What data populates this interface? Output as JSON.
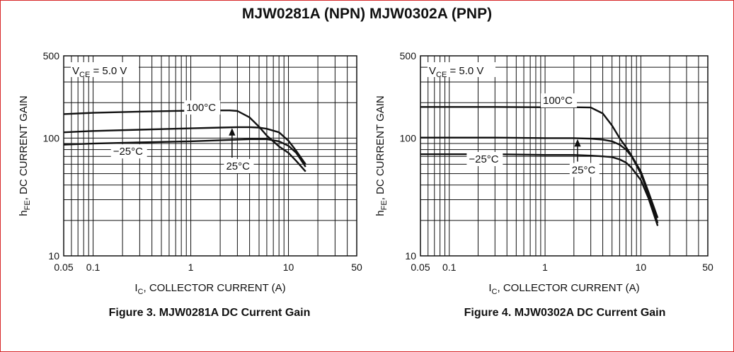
{
  "page": {
    "title": "MJW0281A (NPN) MJW0302A (PNP)",
    "frame_color": "#d8282a"
  },
  "chart_data": [
    {
      "type": "line",
      "title": "Figure 3. MJW0281A DC Current Gain",
      "xlabel": "IC, COLLECTOR CURRENT (A)",
      "ylabel": "hFE, DC CURRENT GAIN",
      "xlabel_parts": {
        "main": "I",
        "sub": "C",
        "rest": ", COLLECTOR CURRENT (A)"
      },
      "ylabel_parts": {
        "main": "h",
        "sub": "FE",
        "rest": ", DC CURRENT GAIN"
      },
      "xscale": "log",
      "yscale": "log",
      "xlim": [
        0.05,
        50
      ],
      "ylim": [
        10,
        500
      ],
      "xticks": [
        {
          "v": 0.05,
          "label": "0.05"
        },
        {
          "v": 0.1,
          "label": "0.1"
        },
        {
          "v": 1,
          "label": "1"
        },
        {
          "v": 10,
          "label": "10"
        },
        {
          "v": 50,
          "label": "50"
        }
      ],
      "yticks": [
        {
          "v": 10,
          "label": "10"
        },
        {
          "v": 100,
          "label": "100"
        },
        {
          "v": 500,
          "label": "500"
        }
      ],
      "grid": true,
      "condition": {
        "main": "V",
        "sub": "CE",
        "rest": " = 5.0 V"
      },
      "series": [
        {
          "name": "100°C",
          "x": [
            0.05,
            0.1,
            0.3,
            1,
            2,
            2.5,
            3,
            4,
            5,
            6,
            8,
            10,
            12,
            15
          ],
          "y": [
            160,
            164,
            168,
            171,
            172,
            172,
            170,
            150,
            125,
            105,
            85,
            75,
            64,
            52
          ]
        },
        {
          "name": "25°C",
          "x": [
            0.05,
            0.1,
            0.3,
            1,
            2,
            3,
            4,
            5,
            6,
            8,
            10,
            12,
            15
          ],
          "y": [
            112,
            115,
            118,
            121,
            123,
            124,
            124,
            123,
            120,
            112,
            95,
            78,
            60
          ]
        },
        {
          "name": "−25°C",
          "x": [
            0.05,
            0.1,
            0.3,
            1,
            2,
            3,
            4,
            5,
            6,
            8,
            10,
            12,
            15
          ],
          "y": [
            88,
            90,
            92,
            94,
            96,
            97,
            98,
            98,
            98,
            94,
            86,
            75,
            57
          ]
        }
      ],
      "annotations": [
        {
          "text": "100°C",
          "x": 0.9,
          "y": 170
        },
        {
          "text": "25°C",
          "x": 2.3,
          "y": 54
        },
        {
          "text": "−25°C",
          "x": 0.16,
          "y": 72
        }
      ]
    },
    {
      "type": "line",
      "title": "Figure 4. MJW0302A DC Current Gain",
      "xlabel": "IC, COLLECTOR CURRENT (A)",
      "ylabel": "hFE, DC CURRENT GAIN",
      "xlabel_parts": {
        "main": "I",
        "sub": "C",
        "rest": ", COLLECTOR CURRENT (A)"
      },
      "ylabel_parts": {
        "main": "h",
        "sub": "FE",
        "rest": ", DC CURRENT GAIN"
      },
      "xscale": "log",
      "yscale": "log",
      "xlim": [
        0.05,
        50
      ],
      "ylim": [
        10,
        500
      ],
      "xticks": [
        {
          "v": 0.05,
          "label": "0.05"
        },
        {
          "v": 0.1,
          "label": "0.1"
        },
        {
          "v": 1,
          "label": "1"
        },
        {
          "v": 10,
          "label": "10"
        },
        {
          "v": 50,
          "label": "50"
        }
      ],
      "yticks": [
        {
          "v": 10,
          "label": "10"
        },
        {
          "v": 100,
          "label": "100"
        },
        {
          "v": 500,
          "label": "500"
        }
      ],
      "grid": true,
      "condition": {
        "main": "V",
        "sub": "CE",
        "rest": " = 5.0 V"
      },
      "series": [
        {
          "name": "100°C",
          "x": [
            0.05,
            0.1,
            0.3,
            1,
            2,
            3,
            4,
            5,
            6,
            7,
            8,
            10,
            12,
            15
          ],
          "y": [
            184,
            184,
            184,
            183,
            183,
            182,
            162,
            128,
            100,
            84,
            71,
            52,
            35,
            21
          ]
        },
        {
          "name": "25°C",
          "x": [
            0.05,
            0.1,
            0.3,
            1,
            2,
            3,
            4,
            5,
            6,
            7,
            8,
            10,
            12,
            15
          ],
          "y": [
            101,
            101,
            101,
            100,
            100,
            99,
            97,
            94,
            88,
            80,
            70,
            50,
            33,
            19
          ]
        },
        {
          "name": "−25°C",
          "x": [
            0.05,
            0.1,
            0.3,
            1,
            2,
            3,
            4,
            5,
            6,
            7,
            8,
            10,
            12,
            15
          ],
          "y": [
            73,
            73,
            73,
            72,
            72,
            71,
            70,
            69,
            66,
            62,
            56,
            44,
            31,
            18
          ]
        }
      ],
      "annotations": [
        {
          "text": "100°C",
          "x": 0.95,
          "y": 195
        },
        {
          "text": "25°C",
          "x": 1.9,
          "y": 50
        },
        {
          "text": "−25°C",
          "x": 0.16,
          "y": 62
        }
      ]
    }
  ]
}
